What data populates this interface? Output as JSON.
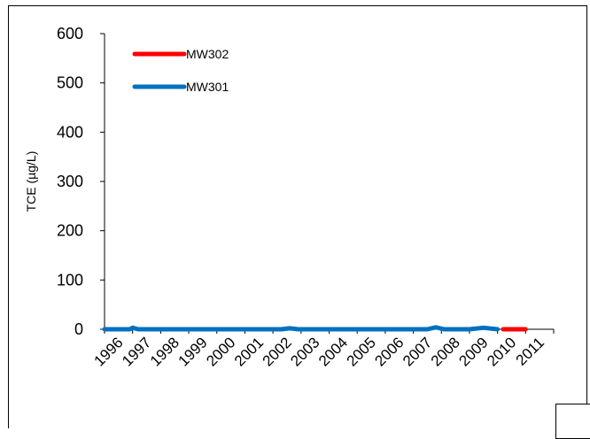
{
  "chart_data": {
    "type": "line",
    "title": "",
    "xlabel": "",
    "ylabel": "TCE (µg/L)",
    "ylim": [
      0,
      600
    ],
    "yticks": [
      0,
      100,
      200,
      300,
      400,
      500,
      600
    ],
    "xlim": [
      1996,
      2011
    ],
    "categories": [
      "1996",
      "1997",
      "1998",
      "1999",
      "2000",
      "2001",
      "2002",
      "2003",
      "2004",
      "2005",
      "2006",
      "2007",
      "2008",
      "2009",
      "2010",
      "2011"
    ],
    "grid": false,
    "legend_position": "top-left",
    "series": [
      {
        "name": "MW302",
        "color": "#ff0000",
        "points": [
          [
            2010.2,
            0
          ],
          [
            2011.0,
            0
          ]
        ]
      },
      {
        "name": "MW301",
        "color": "#0070c0",
        "points": [
          [
            1996.0,
            0
          ],
          [
            1996.9,
            0
          ],
          [
            1997.0,
            3
          ],
          [
            1997.2,
            0
          ],
          [
            2002.3,
            0
          ],
          [
            2002.6,
            2
          ],
          [
            2002.9,
            0
          ],
          [
            2007.5,
            0
          ],
          [
            2007.8,
            4
          ],
          [
            2008.1,
            0
          ],
          [
            2009.0,
            0
          ],
          [
            2009.5,
            3
          ],
          [
            2010.0,
            0
          ]
        ]
      }
    ]
  }
}
